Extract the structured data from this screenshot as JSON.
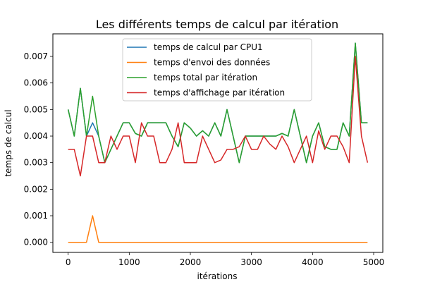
{
  "chart_data": {
    "type": "line",
    "title": "Les différents temps de calcul par itération",
    "xlabel": "itérations",
    "ylabel": "temps de calcul",
    "xlim": [
      -250,
      5150
    ],
    "ylim": [
      -0.00038,
      0.00785
    ],
    "xticks": [
      0,
      1000,
      2000,
      3000,
      4000,
      5000
    ],
    "xtick_labels": [
      "0",
      "1000",
      "2000",
      "3000",
      "4000",
      "5000"
    ],
    "yticks": [
      0,
      0.001,
      0.002,
      0.003,
      0.004,
      0.005,
      0.006,
      0.007
    ],
    "ytick_labels": [
      "0.000",
      "0.001",
      "0.002",
      "0.003",
      "0.004",
      "0.005",
      "0.006",
      "0.007"
    ],
    "grid": false,
    "legend_position": "upper-center",
    "x": [
      0,
      100,
      200,
      300,
      400,
      500,
      600,
      700,
      800,
      900,
      1000,
      1100,
      1200,
      1300,
      1400,
      1500,
      1600,
      1700,
      1800,
      1900,
      2000,
      2100,
      2200,
      2300,
      2400,
      2500,
      2600,
      2700,
      2800,
      2900,
      3000,
      3100,
      3200,
      3300,
      3400,
      3500,
      3600,
      3700,
      3800,
      3900,
      4000,
      4100,
      4200,
      4300,
      4400,
      4500,
      4600,
      4700,
      4800,
      4900
    ],
    "series": [
      {
        "name": "temps de calcul par CPU1",
        "color": "#1f77b4",
        "values": [
          0.005,
          0.004,
          0.0058,
          0.004,
          0.0045,
          0.004,
          0.003,
          0.0035,
          0.004,
          0.0045,
          0.0045,
          0.0041,
          0.004,
          0.0045,
          0.0045,
          0.0045,
          0.0045,
          0.004,
          0.0036,
          0.0045,
          0.0043,
          0.004,
          0.0042,
          0.004,
          0.0045,
          0.004,
          0.005,
          0.004,
          0.003,
          0.004,
          0.004,
          0.004,
          0.004,
          0.004,
          0.004,
          0.0041,
          0.004,
          0.005,
          0.004,
          0.003,
          0.004,
          0.0045,
          0.0036,
          0.0035,
          0.0035,
          0.0045,
          0.004,
          0.0075,
          0.0045,
          0.0045
        ]
      },
      {
        "name": "temps d'envoi des données",
        "color": "#ff7f0e",
        "values": [
          0,
          0,
          0,
          0,
          0.001,
          0,
          0,
          0,
          0,
          0,
          0,
          0,
          0,
          0,
          0,
          0,
          0,
          0,
          0,
          0,
          0,
          0,
          0,
          0,
          0,
          0,
          0,
          0,
          0,
          0,
          0,
          0,
          0,
          0,
          0,
          0,
          0,
          0,
          0,
          0,
          0,
          0,
          0,
          0,
          0,
          0,
          0,
          0,
          0,
          0
        ]
      },
      {
        "name": "temps total par itération",
        "color": "#2ca02c",
        "values": [
          0.005,
          0.004,
          0.0058,
          0.004,
          0.0055,
          0.004,
          0.003,
          0.0035,
          0.004,
          0.0045,
          0.0045,
          0.0041,
          0.004,
          0.0045,
          0.0045,
          0.0045,
          0.0045,
          0.004,
          0.0036,
          0.0045,
          0.0043,
          0.004,
          0.0042,
          0.004,
          0.0045,
          0.004,
          0.005,
          0.004,
          0.003,
          0.004,
          0.004,
          0.004,
          0.004,
          0.004,
          0.004,
          0.0041,
          0.004,
          0.005,
          0.004,
          0.003,
          0.004,
          0.0045,
          0.0036,
          0.0035,
          0.0035,
          0.0045,
          0.004,
          0.0075,
          0.0045,
          0.0045
        ]
      },
      {
        "name": "temps d'affichage par itération",
        "color": "#d62728",
        "values": [
          0.0035,
          0.0035,
          0.0025,
          0.004,
          0.004,
          0.003,
          0.003,
          0.004,
          0.0035,
          0.004,
          0.004,
          0.003,
          0.0045,
          0.004,
          0.004,
          0.003,
          0.003,
          0.0035,
          0.0045,
          0.003,
          0.003,
          0.003,
          0.004,
          0.0035,
          0.003,
          0.0031,
          0.0035,
          0.0035,
          0.0036,
          0.004,
          0.0035,
          0.0035,
          0.004,
          0.0037,
          0.0035,
          0.004,
          0.0036,
          0.003,
          0.0035,
          0.004,
          0.003,
          0.0042,
          0.0035,
          0.004,
          0.004,
          0.0036,
          0.003,
          0.007,
          0.004,
          0.003
        ]
      }
    ]
  }
}
